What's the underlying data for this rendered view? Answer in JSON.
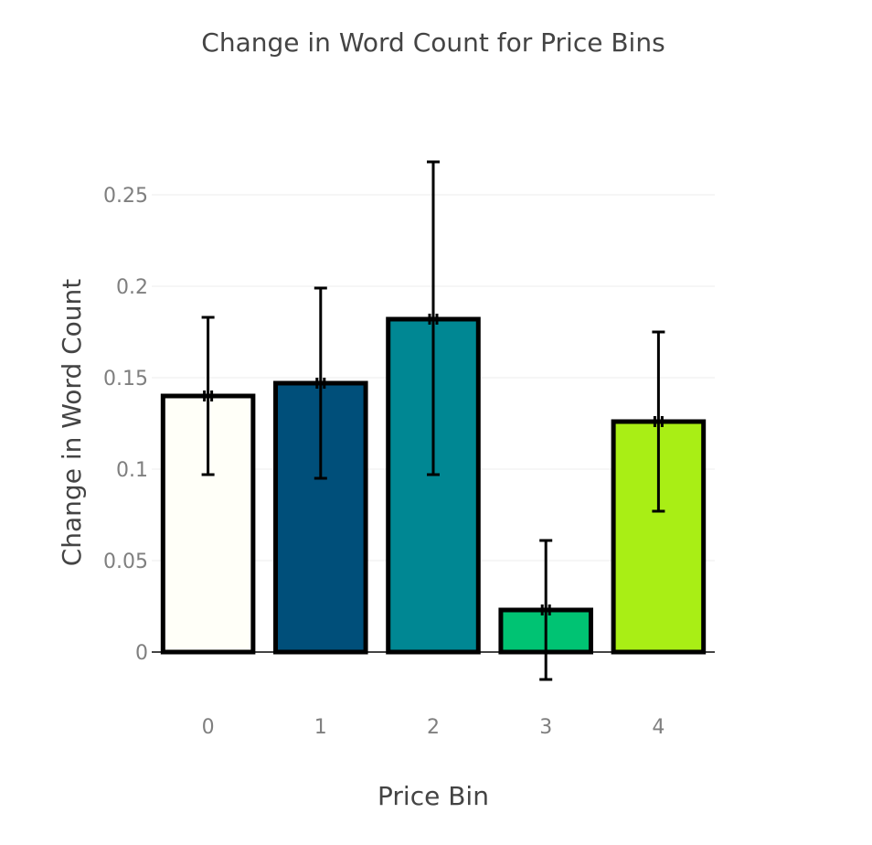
{
  "chart_data": {
    "type": "bar",
    "title": "Change in Word Count for Price Bins",
    "xlabel": "Price Bin",
    "ylabel": "Change in Word Count",
    "categories": [
      "0",
      "1",
      "2",
      "3",
      "4"
    ],
    "values": [
      0.14,
      0.147,
      0.182,
      0.023,
      0.126
    ],
    "error_low": [
      0.097,
      0.095,
      0.097,
      -0.015,
      0.077
    ],
    "error_high": [
      0.183,
      0.199,
      0.268,
      0.061,
      0.175
    ],
    "colors": [
      "#fffff8",
      "#004f7a",
      "#008793",
      "#00c373",
      "#a9ee15"
    ],
    "y_ticks": [
      0,
      0.05,
      0.1,
      0.15,
      0.2,
      0.25
    ],
    "y_tick_labels": [
      "0",
      "0.05",
      "0.1",
      "0.15",
      "0.2",
      "0.25"
    ],
    "ylim": [
      -0.025,
      0.28
    ],
    "grid": true,
    "legend": "none"
  }
}
